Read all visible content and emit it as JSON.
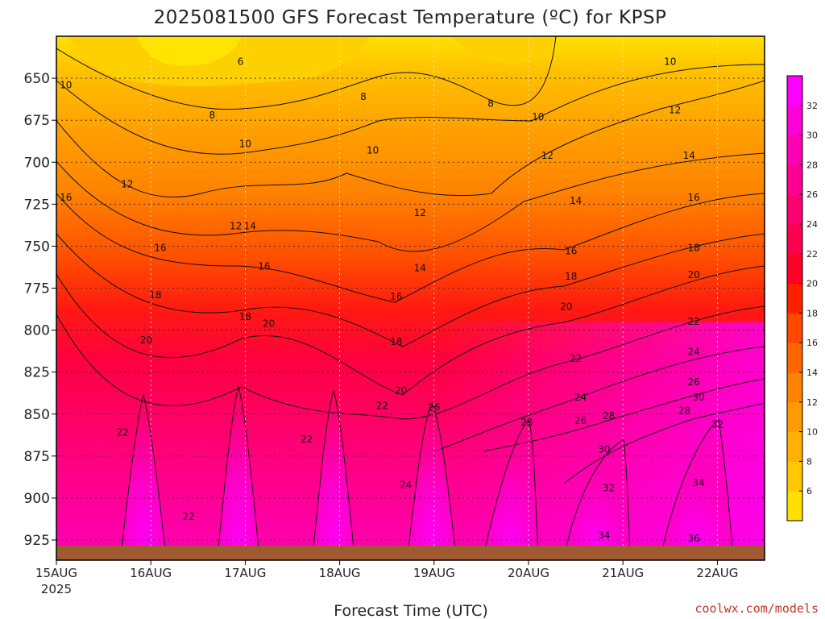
{
  "chart_data": {
    "type": "heatmap",
    "title": "2025081500 GFS Forecast Temperature (ºC) for KPSP",
    "xlabel": "Forecast Time (UTC)",
    "ylabel": "",
    "credit": "coolwx.com/models",
    "x_ticks": [
      {
        "label": "15AUG",
        "sublabel": "2025",
        "day": 0
      },
      {
        "label": "16AUG",
        "sublabel": "",
        "day": 1
      },
      {
        "label": "17AUG",
        "sublabel": "",
        "day": 2
      },
      {
        "label": "18AUG",
        "sublabel": "",
        "day": 3
      },
      {
        "label": "19AUG",
        "sublabel": "",
        "day": 4
      },
      {
        "label": "20AUG",
        "sublabel": "",
        "day": 5
      },
      {
        "label": "21AUG",
        "sublabel": "",
        "day": 6
      },
      {
        "label": "22AUG",
        "sublabel": "",
        "day": 7
      }
    ],
    "xlim_days": [
      0,
      7.5
    ],
    "y_ticks": [
      "650",
      "675",
      "700",
      "725",
      "750",
      "775",
      "800",
      "825",
      "850",
      "875",
      "900",
      "925"
    ],
    "ylim_hpa": [
      625,
      937
    ],
    "y_inverted": true,
    "grid": true,
    "colorbar_ticks": [
      "6",
      "8",
      "10",
      "12",
      "14",
      "16",
      "18",
      "20",
      "22",
      "24",
      "26",
      "28",
      "30",
      "32"
    ],
    "colorbar_levels": [
      {
        "from": 4,
        "to": 6,
        "color": "#ffe000"
      },
      {
        "from": 6,
        "to": 8,
        "color": "#ffc800"
      },
      {
        "from": 8,
        "to": 10,
        "color": "#ffb000"
      },
      {
        "from": 10,
        "to": 12,
        "color": "#ff9a00"
      },
      {
        "from": 12,
        "to": 14,
        "color": "#ff8200"
      },
      {
        "from": 14,
        "to": 16,
        "color": "#ff6600"
      },
      {
        "from": 16,
        "to": 18,
        "color": "#ff4800"
      },
      {
        "from": 18,
        "to": 20,
        "color": "#ff2000"
      },
      {
        "from": 20,
        "to": 22,
        "color": "#ff0028"
      },
      {
        "from": 22,
        "to": 24,
        "color": "#ff0050"
      },
      {
        "from": 24,
        "to": 26,
        "color": "#ff0070"
      },
      {
        "from": 26,
        "to": 28,
        "color": "#ff0090"
      },
      {
        "from": 28,
        "to": 30,
        "color": "#ff00b4"
      },
      {
        "from": 30,
        "to": 32,
        "color": "#ff00d8"
      },
      {
        "from": 32,
        "to": 36,
        "color": "#ff00ff"
      }
    ],
    "contour_labels": [
      {
        "text": "6",
        "day": 1.95,
        "hpa": 640
      },
      {
        "text": "8",
        "day": 1.65,
        "hpa": 672
      },
      {
        "text": "8",
        "day": 3.25,
        "hpa": 661
      },
      {
        "text": "8",
        "day": 4.6,
        "hpa": 665
      },
      {
        "text": "10",
        "day": 0.1,
        "hpa": 654
      },
      {
        "text": "10",
        "day": 6.5,
        "hpa": 640
      },
      {
        "text": "10",
        "day": 2.0,
        "hpa": 689
      },
      {
        "text": "10",
        "day": 3.35,
        "hpa": 693
      },
      {
        "text": "10",
        "day": 5.1,
        "hpa": 673
      },
      {
        "text": "12",
        "day": 0.75,
        "hpa": 713
      },
      {
        "text": "12",
        "day": 6.55,
        "hpa": 669
      },
      {
        "text": "12",
        "day": 5.2,
        "hpa": 696
      },
      {
        "text": "12",
        "day": 3.85,
        "hpa": 730
      },
      {
        "text": "12",
        "day": 1.9,
        "hpa": 738
      },
      {
        "text": "14",
        "day": 2.05,
        "hpa": 738
      },
      {
        "text": "14",
        "day": 5.5,
        "hpa": 723
      },
      {
        "text": "14",
        "day": 6.7,
        "hpa": 696
      },
      {
        "text": "14",
        "day": 3.85,
        "hpa": 763
      },
      {
        "text": "16",
        "day": 0.1,
        "hpa": 721
      },
      {
        "text": "16",
        "day": 1.1,
        "hpa": 751
      },
      {
        "text": "16",
        "day": 2.2,
        "hpa": 762
      },
      {
        "text": "16",
        "day": 6.75,
        "hpa": 721
      },
      {
        "text": "16",
        "day": 5.45,
        "hpa": 753
      },
      {
        "text": "16",
        "day": 3.6,
        "hpa": 780
      },
      {
        "text": "18",
        "day": 1.05,
        "hpa": 779
      },
      {
        "text": "18",
        "day": 2.0,
        "hpa": 792
      },
      {
        "text": "18",
        "day": 6.75,
        "hpa": 751
      },
      {
        "text": "18",
        "day": 5.45,
        "hpa": 768
      },
      {
        "text": "18",
        "day": 3.6,
        "hpa": 807
      },
      {
        "text": "20",
        "day": 0.95,
        "hpa": 806
      },
      {
        "text": "20",
        "day": 2.25,
        "hpa": 796
      },
      {
        "text": "20",
        "day": 6.75,
        "hpa": 767
      },
      {
        "text": "20",
        "day": 5.4,
        "hpa": 786
      },
      {
        "text": "20",
        "day": 3.65,
        "hpa": 836
      },
      {
        "text": "22",
        "day": 0.7,
        "hpa": 861
      },
      {
        "text": "22",
        "day": 1.4,
        "hpa": 911
      },
      {
        "text": "22",
        "day": 2.65,
        "hpa": 865
      },
      {
        "text": "22",
        "day": 3.45,
        "hpa": 845
      },
      {
        "text": "22",
        "day": 5.5,
        "hpa": 817
      },
      {
        "text": "22",
        "day": 6.75,
        "hpa": 795
      },
      {
        "text": "24",
        "day": 3.7,
        "hpa": 892
      },
      {
        "text": "24",
        "day": 5.55,
        "hpa": 840
      },
      {
        "text": "24",
        "day": 6.75,
        "hpa": 813
      },
      {
        "text": "26",
        "day": 4.0,
        "hpa": 846
      },
      {
        "text": "26",
        "day": 5.55,
        "hpa": 854
      },
      {
        "text": "26",
        "day": 6.75,
        "hpa": 831
      },
      {
        "text": "28",
        "day": 4.98,
        "hpa": 855
      },
      {
        "text": "28",
        "day": 5.85,
        "hpa": 851
      },
      {
        "text": "28",
        "day": 6.65,
        "hpa": 848
      },
      {
        "text": "30",
        "day": 5.8,
        "hpa": 871
      },
      {
        "text": "30",
        "day": 6.8,
        "hpa": 840
      },
      {
        "text": "32",
        "day": 5.85,
        "hpa": 894
      },
      {
        "text": "32",
        "day": 7.0,
        "hpa": 856
      },
      {
        "text": "34",
        "day": 5.8,
        "hpa": 922
      },
      {
        "text": "34",
        "day": 6.8,
        "hpa": 891
      },
      {
        "text": "36",
        "day": 6.75,
        "hpa": 924
      }
    ]
  }
}
